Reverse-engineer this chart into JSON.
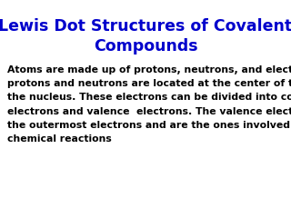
{
  "title": "Lewis Dot Structures of Covalent\nCompounds",
  "title_color": "#0000CC",
  "title_fontsize": 12.5,
  "title_fontweight": "bold",
  "body_text": "Atoms are made up of protons, neutrons, and electrons. The\nprotons and neutrons are located at the center of the atom,\nthe nucleus. These electrons can be divided into core\nelectrons and valence  electrons. The valence electrons are\nthe outermost electrons and are the ones involved in\nchemical reactions",
  "body_color": "#000000",
  "body_fontsize": 7.8,
  "body_fontweight": "bold",
  "background_color": "#FFFFFF",
  "fig_width": 3.2,
  "fig_height": 2.4
}
